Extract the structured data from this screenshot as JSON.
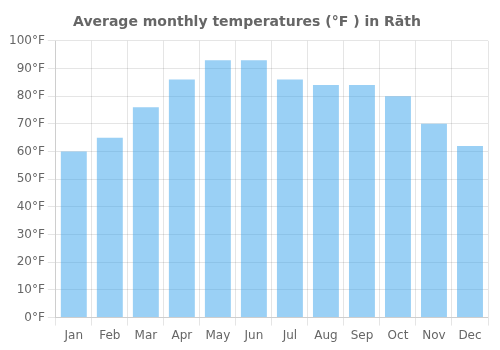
{
  "chart_data": {
    "type": "bar",
    "title": "Average monthly temperatures (°F ) in Rāth",
    "categories": [
      "Jan",
      "Feb",
      "Mar",
      "Apr",
      "May",
      "Jun",
      "Jul",
      "Aug",
      "Sep",
      "Oct",
      "Nov",
      "Dec"
    ],
    "values": [
      60,
      65,
      76,
      86,
      93,
      93,
      86,
      84,
      84,
      80,
      70,
      62
    ],
    "ylim": [
      0,
      100
    ],
    "yticks": [
      {
        "value": 0,
        "label": "0°F"
      },
      {
        "value": 10,
        "label": "10°F"
      },
      {
        "value": 20,
        "label": "20°F"
      },
      {
        "value": 30,
        "label": "30°F"
      },
      {
        "value": 40,
        "label": "40°F"
      },
      {
        "value": 50,
        "label": "50°F"
      },
      {
        "value": 60,
        "label": "60°F"
      },
      {
        "value": 70,
        "label": "70°F"
      },
      {
        "value": 80,
        "label": "80°F"
      },
      {
        "value": 90,
        "label": "90°F"
      },
      {
        "value": 100,
        "label": "100°F"
      }
    ],
    "grid": true
  }
}
